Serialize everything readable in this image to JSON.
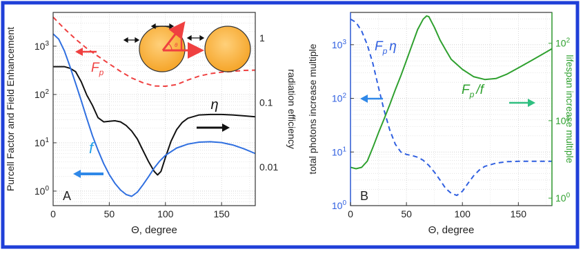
{
  "figure": {
    "border_color": "#1f3fd8"
  },
  "chart_data": [
    {
      "panel": "A",
      "type": "line",
      "y_scale": "log",
      "xlabel": "Θ, degree",
      "ylabel": "Purcell Factor and Field Enhancement",
      "ylabel_right": "radiation efficiency",
      "xlim": [
        0,
        180
      ],
      "ylim": [
        0.5,
        5000
      ],
      "x_ticks": [
        "0",
        "50",
        "100",
        "150"
      ],
      "x_tick_values": [
        0,
        50,
        100,
        150
      ],
      "y_ticks": [
        "10^0",
        "10^1",
        "10^2",
        "10^3"
      ],
      "y_tick_values": [
        1,
        10,
        100,
        1000
      ],
      "right_ticks": [
        "1",
        "0.1",
        "0.01"
      ],
      "right_tick_values": [
        1,
        0.1,
        0.01
      ],
      "right_ylim": [
        0.0025,
        2.5
      ],
      "grid": true,
      "series": [
        {
          "name": "F_p",
          "color": "#ef4040",
          "style": "dashed",
          "axis": "left",
          "points": [
            [
              0,
              4000
            ],
            [
              10,
              2300
            ],
            [
              20,
              1400
            ],
            [
              30,
              900
            ],
            [
              40,
              620
            ],
            [
              50,
              430
            ],
            [
              60,
              300
            ],
            [
              70,
              220
            ],
            [
              80,
              175
            ],
            [
              90,
              150
            ],
            [
              100,
              148
            ],
            [
              110,
              160
            ],
            [
              120,
              200
            ],
            [
              130,
              240
            ],
            [
              140,
              270
            ],
            [
              150,
              290
            ],
            [
              160,
              300
            ],
            [
              170,
              315
            ],
            [
              180,
              320
            ]
          ]
        },
        {
          "name": "η",
          "color": "#111111",
          "style": "solid",
          "axis": "right",
          "points": [
            [
              0,
              0.36
            ],
            [
              5,
              0.36
            ],
            [
              10,
              0.36
            ],
            [
              15,
              0.34
            ],
            [
              20,
              0.3
            ],
            [
              25,
              0.21
            ],
            [
              30,
              0.13
            ],
            [
              35,
              0.09
            ],
            [
              40,
              0.058
            ],
            [
              45,
              0.05
            ],
            [
              50,
              0.051
            ],
            [
              55,
              0.052
            ],
            [
              60,
              0.05
            ],
            [
              65,
              0.044
            ],
            [
              70,
              0.036
            ],
            [
              75,
              0.027
            ],
            [
              80,
              0.018
            ],
            [
              85,
              0.012
            ],
            [
              90,
              0.0085
            ],
            [
              93,
              0.0075
            ],
            [
              96,
              0.0085
            ],
            [
              100,
              0.014
            ],
            [
              105,
              0.025
            ],
            [
              110,
              0.038
            ],
            [
              115,
              0.049
            ],
            [
              120,
              0.057
            ],
            [
              130,
              0.064
            ],
            [
              140,
              0.065
            ],
            [
              150,
              0.065
            ],
            [
              160,
              0.064
            ],
            [
              170,
              0.062
            ],
            [
              180,
              0.06
            ]
          ]
        },
        {
          "name": "f",
          "color": "#2f6fe0",
          "style": "solid",
          "axis": "left",
          "points": [
            [
              0,
              1800
            ],
            [
              5,
              1400
            ],
            [
              10,
              800
            ],
            [
              15,
              380
            ],
            [
              20,
              170
            ],
            [
              25,
              75
            ],
            [
              30,
              32
            ],
            [
              35,
              14
            ],
            [
              40,
              7
            ],
            [
              45,
              3.7
            ],
            [
              50,
              2.2
            ],
            [
              55,
              1.45
            ],
            [
              60,
              1.05
            ],
            [
              65,
              0.85
            ],
            [
              70,
              0.78
            ],
            [
              75,
              0.95
            ],
            [
              80,
              1.35
            ],
            [
              85,
              2.0
            ],
            [
              90,
              3.0
            ],
            [
              95,
              4.2
            ],
            [
              100,
              5.5
            ],
            [
              110,
              7.8
            ],
            [
              120,
              9.4
            ],
            [
              130,
              10.3
            ],
            [
              140,
              10.5
            ],
            [
              150,
              10.1
            ],
            [
              160,
              9.0
            ],
            [
              170,
              7.5
            ],
            [
              180,
              6.0
            ]
          ]
        }
      ],
      "labels": [
        {
          "text": "F",
          "sub": "p",
          "color": "#ef4040"
        },
        {
          "text": "η",
          "color": "#111111"
        },
        {
          "text": "f",
          "color": "#20a0e8"
        }
      ],
      "panel_label": "A"
    },
    {
      "panel": "B",
      "type": "line",
      "y_scale": "log",
      "xlabel": "Θ, degree",
      "ylabel": "total photons increase multiple",
      "ylabel_right": "lifespan increase multiple",
      "xlim": [
        0,
        180
      ],
      "ylim": [
        1,
        4000
      ],
      "x_ticks": [
        "0",
        "50",
        "100",
        "150"
      ],
      "x_tick_values": [
        0,
        50,
        100,
        150
      ],
      "y_ticks": [
        "10^0",
        "10^1",
        "10^2",
        "10^3"
      ],
      "y_tick_values": [
        1,
        10,
        100,
        1000
      ],
      "right_ticks": [
        "10^0",
        "10^1",
        "10^2"
      ],
      "right_tick_values": [
        1,
        10,
        100
      ],
      "right_ylim": [
        0.8,
        250
      ],
      "grid": true,
      "series": [
        {
          "name": "F_p η",
          "color": "#2f5fe0",
          "style": "dashed",
          "axis": "left",
          "points": [
            [
              0,
              3000
            ],
            [
              5,
              2600
            ],
            [
              10,
              1800
            ],
            [
              15,
              1000
            ],
            [
              20,
              450
            ],
            [
              25,
              160
            ],
            [
              30,
              60
            ],
            [
              35,
              26
            ],
            [
              40,
              14
            ],
            [
              45,
              10
            ],
            [
              50,
              9.0
            ],
            [
              55,
              8.6
            ],
            [
              60,
              8.0
            ],
            [
              65,
              7.0
            ],
            [
              70,
              5.6
            ],
            [
              75,
              4.2
            ],
            [
              80,
              3.0
            ],
            [
              85,
              2.1
            ],
            [
              90,
              1.7
            ],
            [
              95,
              1.55
            ],
            [
              100,
              1.85
            ],
            [
              105,
              2.6
            ],
            [
              110,
              3.6
            ],
            [
              115,
              4.6
            ],
            [
              120,
              5.4
            ],
            [
              130,
              6.2
            ],
            [
              140,
              6.6
            ],
            [
              150,
              6.7
            ],
            [
              160,
              6.7
            ],
            [
              170,
              6.7
            ],
            [
              180,
              6.7
            ]
          ]
        },
        {
          "name": "F_p / f",
          "color": "#2ea02e",
          "style": "solid",
          "axis": "right",
          "points": [
            [
              0,
              2.5
            ],
            [
              5,
              2.4
            ],
            [
              10,
              2.5
            ],
            [
              15,
              3.0
            ],
            [
              20,
              4.5
            ],
            [
              25,
              7.0
            ],
            [
              30,
              10.5
            ],
            [
              35,
              16
            ],
            [
              40,
              25
            ],
            [
              45,
              38
            ],
            [
              50,
              60
            ],
            [
              55,
              95
            ],
            [
              60,
              150
            ],
            [
              65,
              205
            ],
            [
              68,
              225
            ],
            [
              70,
              220
            ],
            [
              75,
              160
            ],
            [
              80,
              110
            ],
            [
              85,
              82
            ],
            [
              90,
              62
            ],
            [
              100,
              46
            ],
            [
              110,
              37
            ],
            [
              120,
              34
            ],
            [
              130,
              35
            ],
            [
              140,
              40
            ],
            [
              150,
              48
            ],
            [
              160,
              58
            ],
            [
              170,
              70
            ],
            [
              180,
              85
            ]
          ]
        }
      ],
      "labels": [
        {
          "text": "F",
          "sub": "p",
          "tail": "η",
          "color": "#2f5fe0"
        },
        {
          "text": "F",
          "sub": "p",
          "tail": "/f",
          "color": "#2ea02e"
        }
      ],
      "panel_label": "B"
    }
  ]
}
